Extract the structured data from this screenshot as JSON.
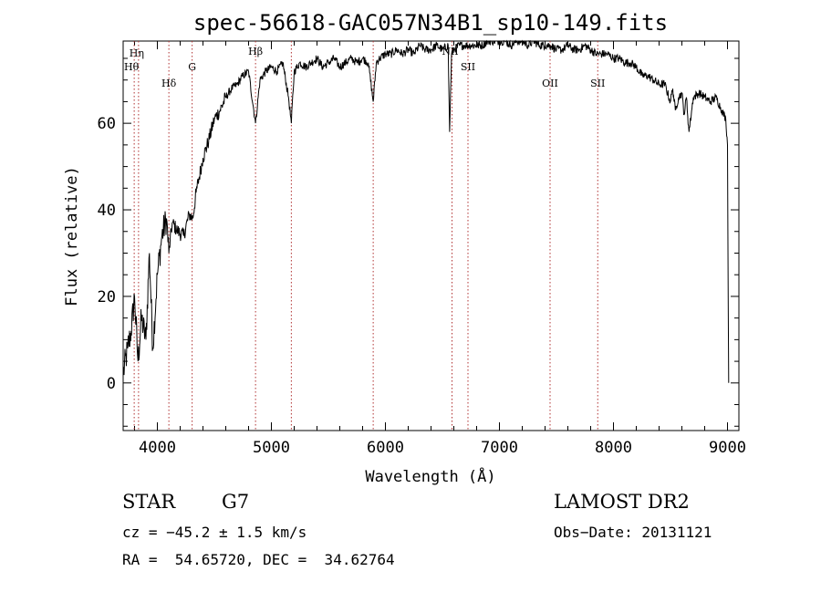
{
  "chart_data": {
    "type": "line",
    "title": "spec-56618-GAC057N34B1_sp10-149.fits",
    "xlabel": "Wavelength (Å)",
    "ylabel": "Flux (relative)",
    "xlim": [
      3700,
      9100
    ],
    "ylim": [
      -11,
      79
    ],
    "xticks": [
      4000,
      5000,
      6000,
      7000,
      8000,
      9000
    ],
    "yticks": [
      0,
      20,
      40,
      60
    ],
    "grid": false,
    "series": [
      {
        "x": [
          3700,
          3740,
          3770,
          3800,
          3830,
          3860,
          3900,
          3930,
          3960,
          4000,
          4040,
          4080,
          4101,
          4130,
          4180,
          4230,
          4280,
          4310,
          4340,
          4400,
          4450,
          4500,
          4550,
          4600,
          4650,
          4700,
          4750,
          4800,
          4861,
          4900,
          4950,
          5000,
          5050,
          5100,
          5150,
          5175,
          5200,
          5250,
          5300,
          5350,
          5400,
          5450,
          5500,
          5550,
          5600,
          5650,
          5700,
          5750,
          5800,
          5850,
          5893,
          5920,
          5950,
          6000,
          6050,
          6100,
          6150,
          6200,
          6250,
          6300,
          6350,
          6400,
          6450,
          6500,
          6550,
          6563,
          6580,
          6600,
          6650,
          6700,
          6750,
          6800,
          6850,
          6900,
          6950,
          7000,
          7050,
          7100,
          7150,
          7200,
          7250,
          7300,
          7350,
          7400,
          7450,
          7500,
          7550,
          7600,
          7650,
          7700,
          7750,
          7800,
          7850,
          7900,
          7950,
          8000,
          8050,
          8100,
          8150,
          8200,
          8250,
          8300,
          8350,
          8400,
          8450,
          8498,
          8520,
          8542,
          8570,
          8600,
          8620,
          8640,
          8662,
          8700,
          8750,
          8800,
          8850,
          8900,
          8950,
          8985,
          9000,
          9010
        ],
        "y": [
          2,
          8,
          12,
          20,
          5,
          15,
          10,
          30,
          8,
          25,
          34,
          38,
          30,
          37,
          35,
          34,
          39,
          38,
          44,
          52,
          56,
          61,
          63,
          66,
          68,
          69,
          71,
          72,
          60,
          70,
          72,
          73,
          72,
          74,
          66,
          60,
          72,
          74,
          73,
          74,
          75,
          73,
          74,
          75,
          73,
          74,
          75,
          74,
          75,
          74,
          65,
          74,
          75,
          76,
          76,
          77,
          76,
          77,
          76,
          78,
          77,
          77,
          78,
          77,
          78,
          58,
          76,
          77,
          78,
          78,
          78,
          78,
          78,
          79,
          79,
          79,
          79,
          78,
          79,
          79,
          78,
          79,
          78,
          78,
          78,
          77,
          77,
          78,
          77,
          77,
          78,
          77,
          76,
          76,
          76,
          75,
          75,
          74,
          74,
          73,
          71,
          71,
          70,
          69,
          69,
          65,
          68,
          63,
          66,
          67,
          62,
          66,
          58,
          66,
          67,
          66,
          65,
          66,
          63,
          61,
          55,
          0
        ]
      }
    ],
    "lines": [
      {
        "label": "Hη",
        "x": 3835
      },
      {
        "label": "Hθ",
        "x": 3797
      },
      {
        "label": "Hδ",
        "x": 4101
      },
      {
        "label": "G",
        "x": 4305
      },
      {
        "label": "Hβ",
        "x": 4861
      },
      {
        "label": "",
        "x": 5175
      },
      {
        "label": "",
        "x": 5893
      },
      {
        "label": "NII",
        "x": 6584
      },
      {
        "label": "SII",
        "x": 6724
      },
      {
        "label": "OII",
        "x": 7444
      },
      {
        "label": "SII",
        "x": 7862
      }
    ]
  },
  "info": {
    "class": "STAR",
    "subclass": "G7",
    "survey": "LAMOST DR2",
    "cz": "cz = −45.2 ± 1.5 km/s",
    "obsdate": "Obs−Date: 20131121",
    "coords": "RA =  54.65720, DEC =  34.62764"
  }
}
